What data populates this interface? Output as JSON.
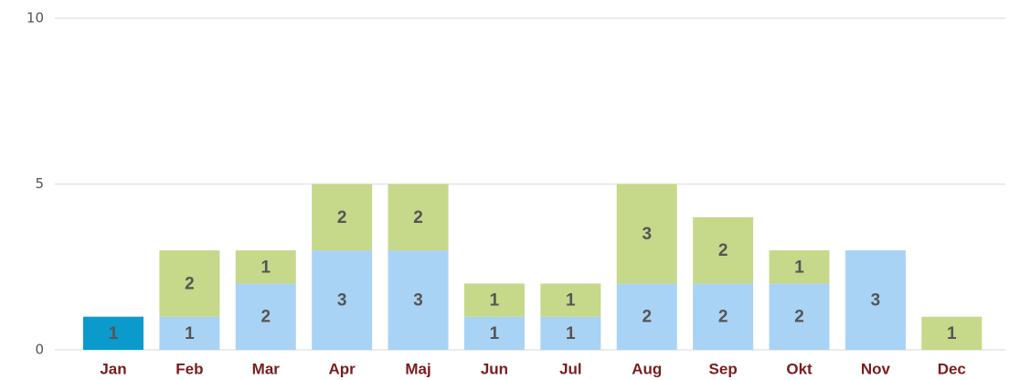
{
  "chart_data": {
    "type": "stacked_bar",
    "categories": [
      "Jan",
      "Feb",
      "Mar",
      "Apr",
      "Maj",
      "Jun",
      "Jul",
      "Aug",
      "Sep",
      "Okt",
      "Nov",
      "Dec"
    ],
    "series": [
      {
        "color": "#a9d3f5",
        "colors": [
          "#0a9bcc",
          "#a9d3f5",
          "#a9d3f5",
          "#a9d3f5",
          "#a9d3f5",
          "#a9d3f5",
          "#a9d3f5",
          "#a9d3f5",
          "#a9d3f5",
          "#a9d3f5",
          "#a9d3f5",
          "#a9d3f5"
        ],
        "values": [
          1,
          1,
          2,
          3,
          3,
          1,
          1,
          2,
          2,
          2,
          3,
          null
        ]
      },
      {
        "color": "#c6d88a",
        "values": [
          null,
          2,
          1,
          2,
          2,
          1,
          1,
          3,
          2,
          1,
          null,
          1
        ]
      }
    ],
    "ylim": [
      0,
      10
    ],
    "yticks": [
      0,
      5,
      10
    ],
    "grid": true
  }
}
